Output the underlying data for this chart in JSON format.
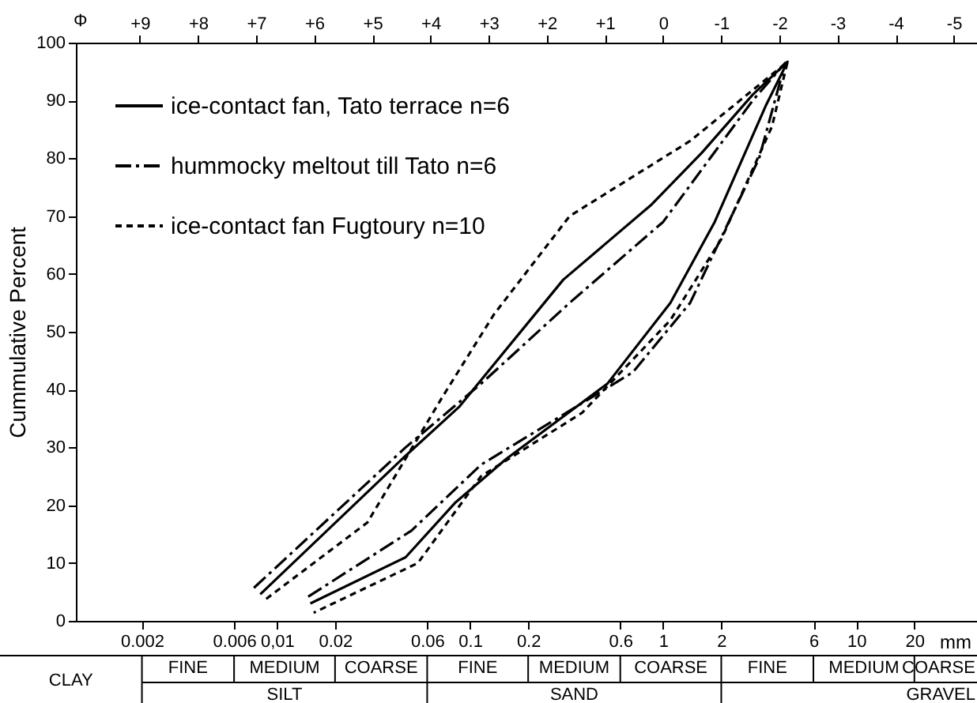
{
  "chart_data": {
    "type": "line",
    "ylabel": "Cummulative Percent",
    "xlabel": "mm",
    "x2label": "Φ",
    "xlim": [
      0.00091,
      42.2
    ],
    "ylim": [
      0,
      100
    ],
    "log": "x",
    "yticks": [
      0,
      10,
      20,
      30,
      40,
      50,
      60,
      70,
      80,
      90,
      100
    ],
    "xticks": [
      0.002,
      0.006,
      {
        "value": 0.01,
        "label": "0,01"
      },
      0.02,
      0.06,
      0.1,
      0.2,
      0.6,
      1,
      2,
      6,
      10,
      20
    ],
    "x2lim": [
      10.1,
      -5.4
    ],
    "x2ticks": [
      {
        "value": 9,
        "label": "+9"
      },
      {
        "value": 8,
        "label": "+8"
      },
      {
        "value": 7,
        "label": "+7"
      },
      {
        "value": 6,
        "label": "+6"
      },
      {
        "value": 5,
        "label": "+5"
      },
      {
        "value": 4,
        "label": "+4"
      },
      {
        "value": 3,
        "label": "+3"
      },
      {
        "value": 2,
        "label": "+2"
      },
      {
        "value": 1,
        "label": "+1"
      },
      0,
      -1,
      -2,
      -3,
      -4,
      -5
    ],
    "grid": false,
    "legend": "top left",
    "marker": "none",
    "annotations": [
      "FINE",
      "MEDIUM",
      "COARSE",
      "FINE",
      "MEDIUM",
      "COARSE",
      "FINE",
      "MEDIUM",
      "COARSE",
      "CLAY",
      "SILT",
      "SAND",
      "GRAVEL"
    ],
    "series": [
      {
        "name": "ice-contact fan, Tato terrace n=6",
        "color": "#000000",
        "line_style": "solid",
        "x": [
          0.0082,
          0.0445,
          0.0878,
          0.304,
          0.871,
          1.59,
          2.91,
          4.41,
          3.39,
          1.85,
          1.09,
          0.514,
          0.154,
          0.0842,
          0.0464,
          0.0149
        ],
        "values": [
          4.6,
          28,
          37,
          59,
          72,
          81,
          91,
          96.7,
          89,
          69,
          55,
          41,
          28,
          20.5,
          11,
          3
        ]
      },
      {
        "name": "hummocky meltout till Tato n=6",
        "color": "#000000",
        "line_style": "dashdot",
        "x": [
          0.0076,
          0.0464,
          0.114,
          0.328,
          1.0,
          2.91,
          4.29,
          3.14,
          1.38,
          0.697,
          0.114,
          0.0497,
          0.0144
        ],
        "values": [
          5.7,
          30,
          41,
          55,
          69,
          90,
          96.5,
          80,
          55,
          43,
          27,
          15.6,
          4.1
        ]
      },
      {
        "name": "ice-contact fan Fugtoury n=10",
        "color": "#000000",
        "line_style": "dashed",
        "x": [
          0.0088,
          0.0294,
          0.0728,
          0.133,
          0.328,
          1.38,
          4.41,
          3.66,
          2.0,
          1.09,
          0.381,
          0.114,
          0.0537,
          0.0155
        ],
        "values": [
          3.8,
          17,
          39,
          53,
          70,
          83,
          96.7,
          85.5,
          66,
          52,
          36,
          25,
          10,
          1.4
        ]
      }
    ]
  }
}
